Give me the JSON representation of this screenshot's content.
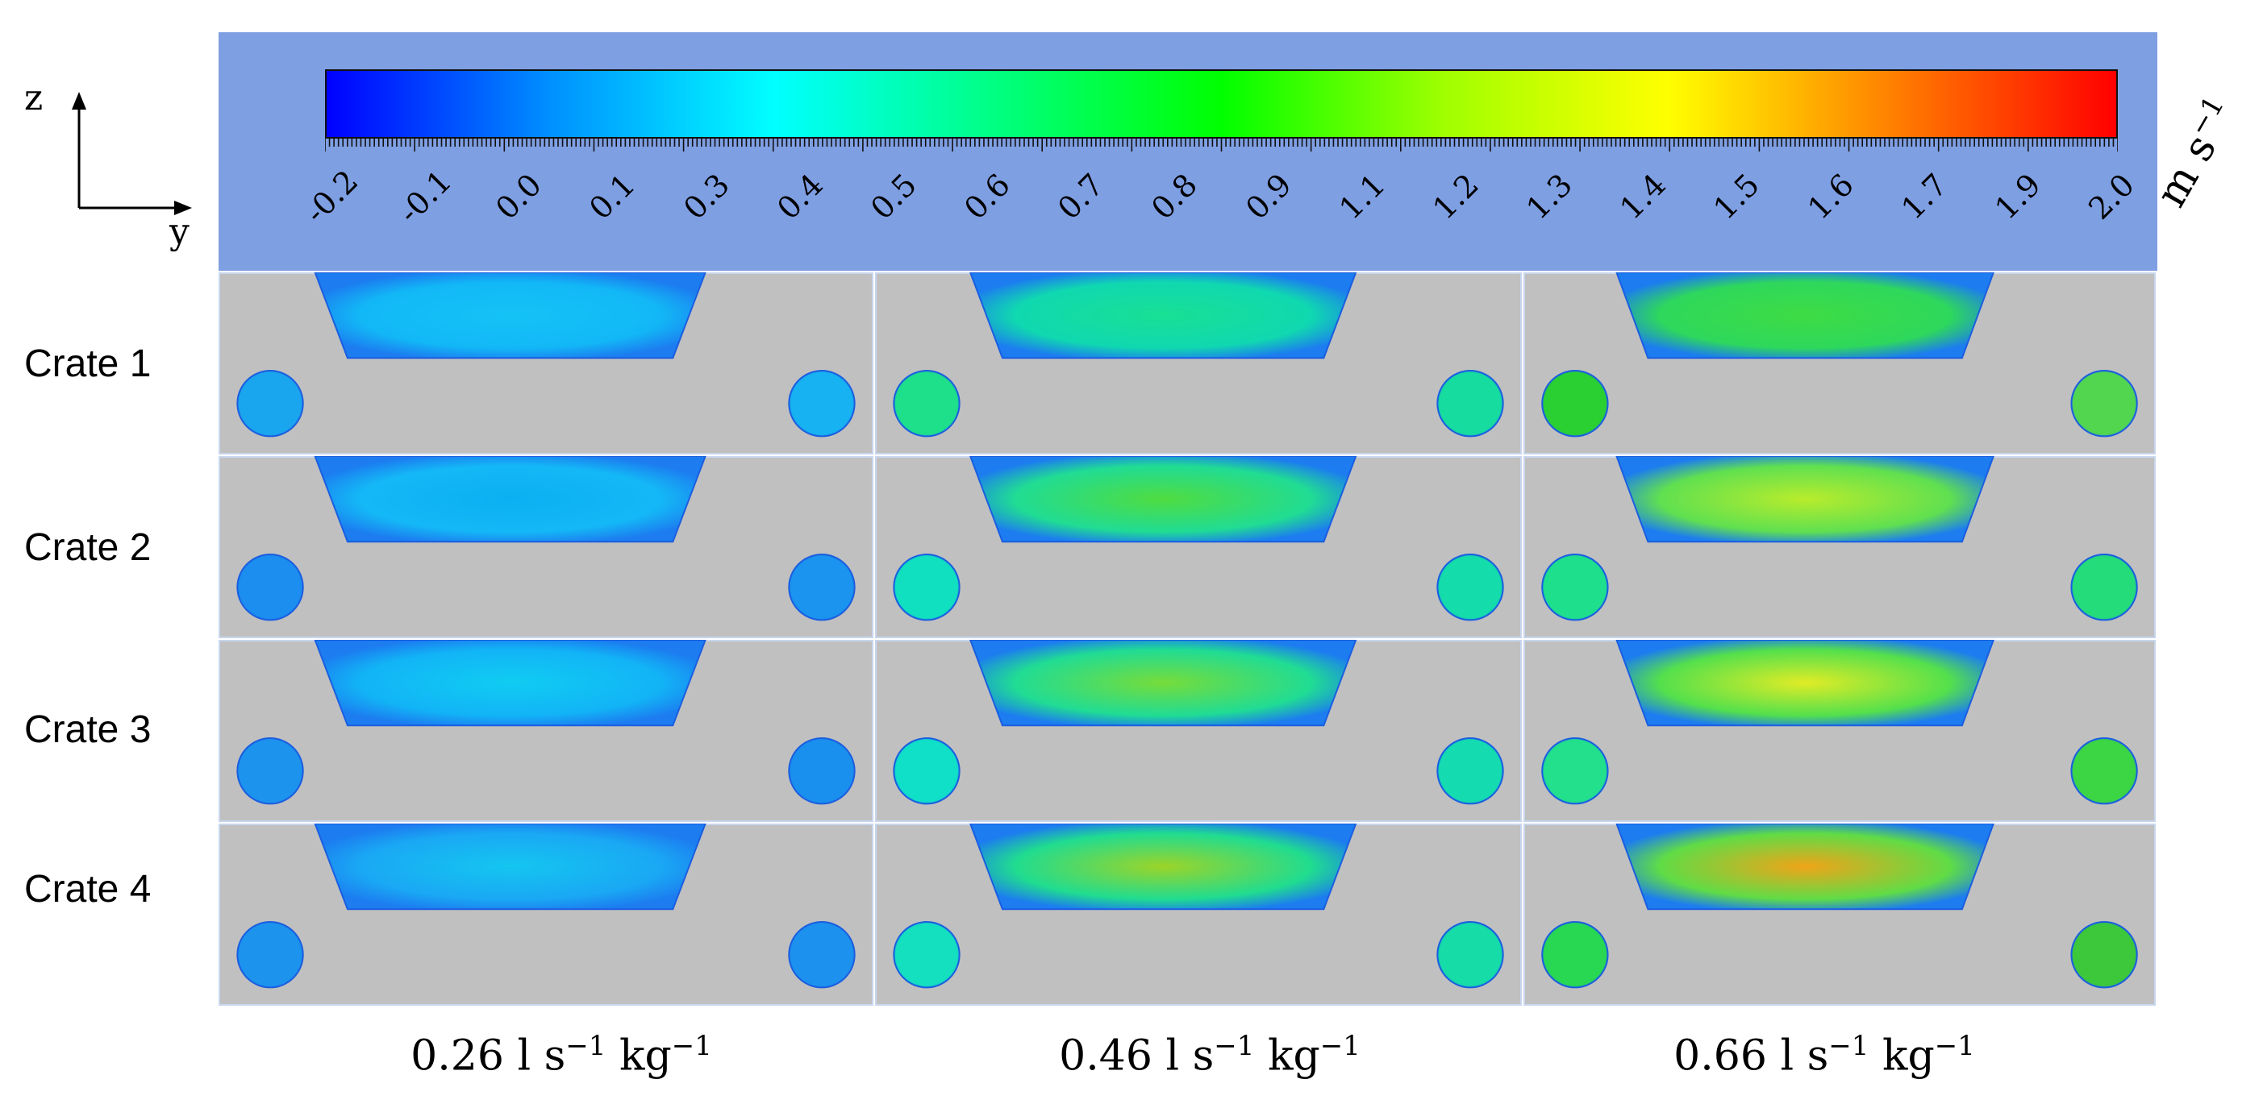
{
  "colorbar": {
    "ticks": [
      "-0.2",
      "-0.1",
      "0.0",
      "0.1",
      "0.3",
      "0.4",
      "0.5",
      "0.6",
      "0.7",
      "0.8",
      "0.9",
      "1.1",
      "1.2",
      "1.3",
      "1.4",
      "1.5",
      "1.6",
      "1.7",
      "1.9",
      "2.0"
    ],
    "unit_text": "m s",
    "unit_exp": "−1",
    "colors": [
      "#0000ff",
      "#0090ff",
      "#00ffff",
      "#00ff80",
      "#00ff00",
      "#a0ff00",
      "#ffff00",
      "#ff8000",
      "#ff0000"
    ]
  },
  "axes": {
    "vertical": "z",
    "horizontal": "y"
  },
  "rows": [
    "Crate 1",
    "Crate 2",
    "Crate 3",
    "Crate 4"
  ],
  "columns": [
    {
      "value": "0.26 l s",
      "exp1": "−1",
      "mid": " kg",
      "exp2": "−1"
    },
    {
      "value": "0.46 l s",
      "exp1": "−1",
      "mid": " kg",
      "exp2": "−1"
    },
    {
      "value": "0.66 l s",
      "exp1": "−1",
      "mid": " kg",
      "exp2": "−1"
    }
  ],
  "panel_colors": [
    [
      {
        "trap": "#12b8f6",
        "trapCore": "#14c2f6",
        "circL": "#1aa6ee",
        "circR": "#16b2f2"
      },
      {
        "trap": "#10d8b0",
        "trapCore": "#18e094",
        "circL": "#1ee08a",
        "circR": "#16dca0"
      },
      {
        "trap": "#2ed85c",
        "trapCore": "#3edc44",
        "circL": "#2ad032",
        "circR": "#52d650"
      }
    ],
    [
      {
        "trap": "#14b8f6",
        "trapCore": "#0ab0f2",
        "circL": "#1c8ef0",
        "circR": "#1a94ee"
      },
      {
        "trap": "#20dc94",
        "trapCore": "#50dc40",
        "circL": "#10e0c0",
        "circR": "#14dcaa"
      },
      {
        "trap": "#60e050",
        "trapCore": "#b8ec2c",
        "circL": "#1ee08c",
        "circR": "#24dc7a"
      }
    ],
    [
      {
        "trap": "#12b4f6",
        "trapCore": "#10ccf2",
        "circL": "#1c94ee",
        "circR": "#1a90ee"
      },
      {
        "trap": "#20dc94",
        "trapCore": "#76dc3a",
        "circL": "#10e0c8",
        "circR": "#14dcb0"
      },
      {
        "trap": "#54e04c",
        "trapCore": "#e0ec26",
        "circL": "#22e08c",
        "circR": "#3cd644"
      }
    ],
    [
      {
        "trap": "#1aa8f4",
        "trapCore": "#14c6f0",
        "circL": "#1c94ee",
        "circR": "#1c92ee"
      },
      {
        "trap": "#20dc90",
        "trapCore": "#9cd428",
        "circL": "#14e0c0",
        "circR": "#16dca8"
      },
      {
        "trap": "#60dc46",
        "trapCore": "#f0a418",
        "circL": "#28d852",
        "circR": "#3cc83a"
      }
    ]
  ]
}
